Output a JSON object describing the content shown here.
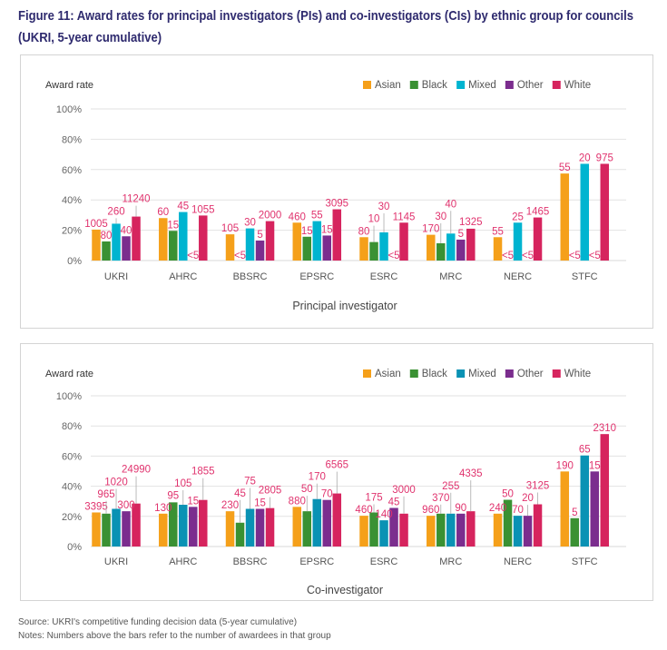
{
  "title": "Figure 11: Award rates for principal investigators (PIs) and co-investigators (CIs) by ethnic group for councils (UKRI, 5-year cumulative)",
  "notes": {
    "source": "Source: UKRI's competitive funding decision data (5-year cumulative)",
    "notes": "Notes: Numbers above the bars refer to the number of awardees in that group"
  },
  "chart_data": [
    {
      "type": "bar",
      "title": "Principal investigator",
      "ylabel": "Award rate",
      "ylim": [
        0,
        100
      ],
      "yticks": [
        "0%",
        "20%",
        "40%",
        "60%",
        "80%",
        "100%"
      ],
      "grid": true,
      "legend_placement": "top-right",
      "categories": [
        "UKRI",
        "AHRC",
        "BBSRC",
        "EPSRC",
        "ESRC",
        "MRC",
        "NERC",
        "STFC"
      ],
      "series": [
        {
          "name": "Asian",
          "color": "#f5a01a",
          "values": [
            20.4,
            28,
            17.3,
            25,
            15.4,
            17,
            15.4,
            57.4
          ],
          "labels": [
            "1005",
            "60",
            "105",
            "460",
            "80",
            "170",
            "55",
            "55"
          ]
        },
        {
          "name": "Black",
          "color": "#3a9133",
          "values": [
            12.6,
            19.6,
            null,
            15.7,
            12.2,
            11.4,
            null,
            null
          ],
          "labels": [
            "80",
            "15",
            "<5",
            "15",
            "10",
            "30",
            "<5",
            "<5"
          ]
        },
        {
          "name": "Mixed",
          "color": "#00b4d0",
          "values": [
            24.3,
            32,
            21.2,
            26,
            18.6,
            17.8,
            25,
            63.8
          ],
          "labels": [
            "260",
            "45",
            "30",
            "55",
            "30",
            "40",
            "25",
            "20"
          ]
        },
        {
          "name": "Other",
          "color": "#7b2d8e",
          "values": [
            16,
            null,
            13.2,
            16.5,
            null,
            13.8,
            null,
            null
          ],
          "labels": [
            "40",
            "<5",
            "5",
            "15",
            "<5",
            "5",
            "<5",
            "<5"
          ]
        },
        {
          "name": "White",
          "color": "#d6245e",
          "values": [
            29,
            29.7,
            26,
            33.8,
            25,
            21,
            28.4,
            63.8
          ],
          "labels": [
            "11240",
            "1055",
            "2000",
            "3095",
            "1145",
            "1325",
            "1465",
            "975"
          ]
        }
      ]
    },
    {
      "type": "bar",
      "title": "Co-investigator",
      "ylabel": "Award rate",
      "ylim": [
        0,
        100
      ],
      "yticks": [
        "0%",
        "20%",
        "40%",
        "60%",
        "80%",
        "100%"
      ],
      "grid": true,
      "legend_placement": "top-right",
      "categories": [
        "UKRI",
        "AHRC",
        "BBSRC",
        "EPSRC",
        "ESRC",
        "MRC",
        "NERC",
        "STFC"
      ],
      "series": [
        {
          "name": "Asian",
          "color": "#f5a01a",
          "values": [
            22.6,
            21.8,
            23.4,
            26.3,
            20.4,
            20.4,
            21.8,
            49.8
          ],
          "labels": [
            "3395",
            "130",
            "230",
            "880",
            "460",
            "960",
            "240",
            "190"
          ]
        },
        {
          "name": "Black",
          "color": "#3a9133",
          "values": [
            21.8,
            29.3,
            15.8,
            23.4,
            22.6,
            21.8,
            31,
            18.8
          ],
          "labels": [
            "965",
            "95",
            "45",
            "50",
            "175",
            "370",
            "50",
            "5"
          ]
        },
        {
          "name": "Mixed",
          "color": "#0a92b4",
          "values": [
            25,
            27.7,
            25,
            31.5,
            17.4,
            21.8,
            20.4,
            60.4
          ],
          "labels": [
            "1020",
            "105",
            "75",
            "170",
            "140",
            "255",
            "70",
            "65"
          ]
        },
        {
          "name": "Other",
          "color": "#7b2d8e",
          "values": [
            23.4,
            26.3,
            25,
            30.9,
            25.6,
            21.8,
            20.4,
            49.8
          ],
          "labels": [
            "300",
            "15",
            "15",
            "70",
            "45",
            "90",
            "20",
            "15"
          ]
        },
        {
          "name": "White",
          "color": "#d6245e",
          "values": [
            28.5,
            30.9,
            25.5,
            35.2,
            21.8,
            23.4,
            28,
            74.6
          ],
          "labels": [
            "24990",
            "1855",
            "2805",
            "6565",
            "3000",
            "4335",
            "3125",
            "2310"
          ]
        }
      ]
    }
  ]
}
